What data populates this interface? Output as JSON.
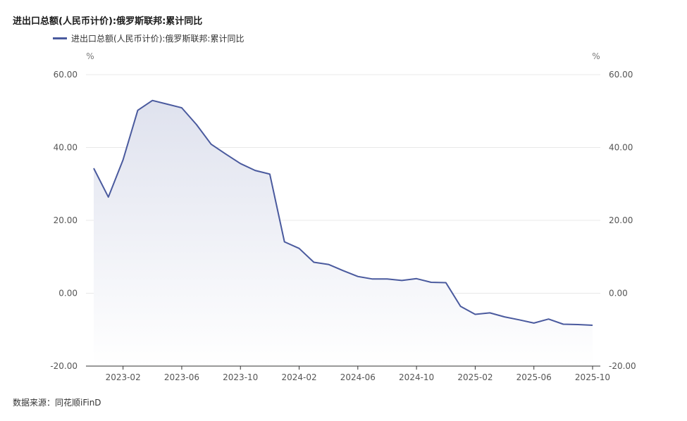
{
  "title": "进出口总额(人民币计价):俄罗斯联邦:累计同比",
  "source": "数据来源：同花顺iFinD",
  "colors": {
    "line": "#4a5a9e",
    "area_top": "#dfe2ee",
    "grid": "#e8e8e8",
    "axis": "#333333"
  },
  "chart_data": {
    "type": "area",
    "title": "进出口总额(人民币计价):俄罗斯联邦:累计同比",
    "legend_position": "top-left",
    "grid": true,
    "y_unit_left": "%",
    "y_unit_right": "%",
    "ylim": [
      -20,
      60
    ],
    "y_ticks": [
      "60.00",
      "40.00",
      "20.00",
      "0.00",
      "-20.00"
    ],
    "y_tick_values": [
      60,
      40,
      20,
      0,
      -20
    ],
    "x_ticks": [
      "2023-02",
      "2023-06",
      "2023-10",
      "2024-02",
      "2024-06",
      "2024-10",
      "2025-02",
      "2025-06",
      "2025-10"
    ],
    "series": [
      {
        "name": "进出口总额(人民币计价):俄罗斯联邦:累计同比",
        "x": [
          "2022-12",
          "2023-01",
          "2023-02",
          "2023-03",
          "2023-04",
          "2023-05",
          "2023-06",
          "2023-07",
          "2023-08",
          "2023-09",
          "2023-10",
          "2023-11",
          "2023-12",
          "2024-01",
          "2024-02",
          "2024-03",
          "2024-04",
          "2024-05",
          "2024-06",
          "2024-07",
          "2024-08",
          "2024-09",
          "2024-10",
          "2024-11",
          "2024-12",
          "2025-01",
          "2025-02",
          "2025-03",
          "2025-04",
          "2025-05",
          "2025-06",
          "2025-07",
          "2025-08",
          "2025-09",
          "2025-10"
        ],
        "values": [
          34.3,
          26.4,
          36.6,
          50.2,
          52.9,
          51.9,
          50.9,
          46.3,
          40.9,
          38.2,
          35.6,
          33.7,
          32.7,
          14.1,
          12.3,
          8.5,
          7.9,
          6.2,
          4.6,
          3.9,
          3.9,
          3.5,
          4.0,
          3.0,
          2.9,
          -3.6,
          -5.8,
          -5.4,
          -6.5,
          -7.3,
          -8.2,
          -7.1,
          -8.5,
          -8.6,
          -8.8
        ]
      }
    ]
  }
}
